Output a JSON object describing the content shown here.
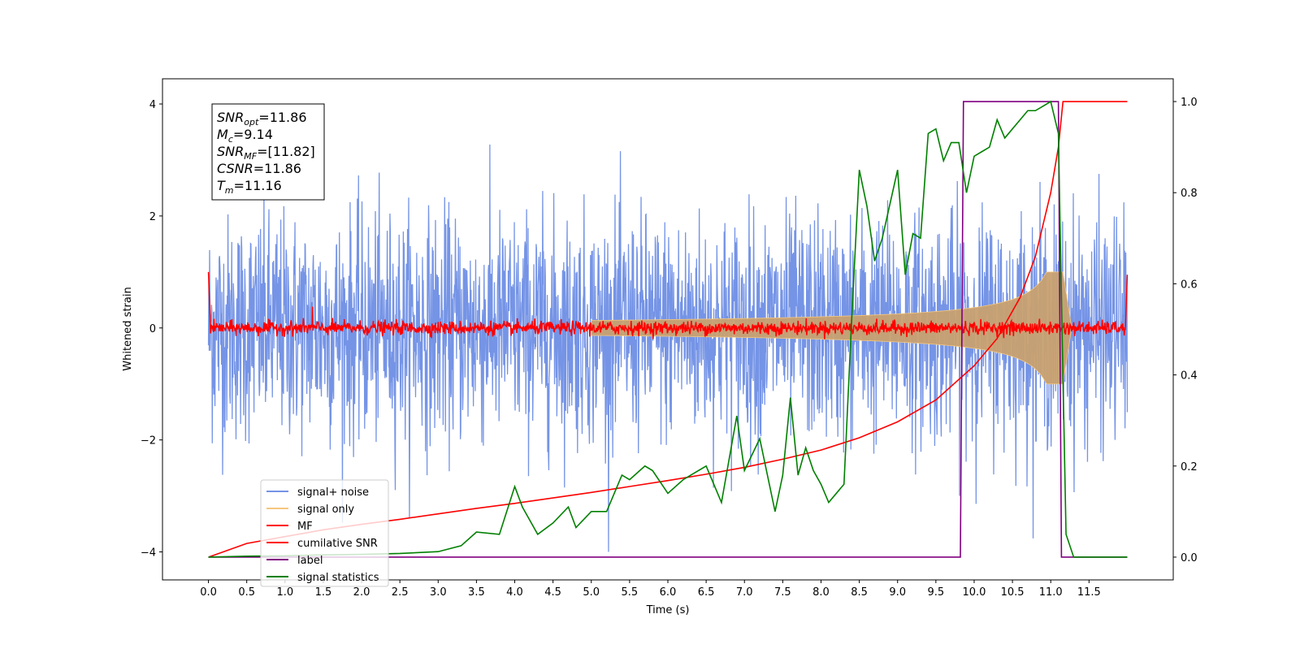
{
  "chart_data": {
    "type": "line",
    "xlabel": "Time (s)",
    "ylabel": "Whitened strain",
    "xlim": [
      -0.6,
      12.6
    ],
    "ylim": [
      -4.5,
      4.45
    ],
    "y2lim": [
      -0.05,
      1.05
    ],
    "x_ticks": [
      "0.0",
      "0.5",
      "1.0",
      "1.5",
      "2.0",
      "2.5",
      "3.0",
      "3.5",
      "4.0",
      "4.5",
      "5.0",
      "5.5",
      "6.0",
      "6.5",
      "7.0",
      "7.5",
      "8.0",
      "8.5",
      "9.0",
      "9.5",
      "10.0",
      "10.5",
      "11.0",
      "11.5"
    ],
    "y_ticks": [
      "4",
      "2",
      "0",
      "−2",
      "−4"
    ],
    "y2_ticks": [
      "1.0",
      "0.8",
      "0.6",
      "0.4",
      "0.2",
      "0.0"
    ],
    "grid": false,
    "legend_position": "lower-left",
    "info_box": {
      "lines": [
        {
          "sym": "SNR",
          "sub": "opt",
          "val": "=11.86"
        },
        {
          "sym": "M",
          "sub": "c",
          "val": "=9.14"
        },
        {
          "sym": "SNR",
          "sub": "MF",
          "val": "=[11.82]"
        },
        {
          "sym": "CSNR",
          "sub": "",
          "val": "=11.86"
        },
        {
          "sym": "T",
          "sub": "m",
          "val": "=11.16"
        }
      ]
    },
    "series": [
      {
        "name": "signal+ noise",
        "axis": "left",
        "color": "#7594e6",
        "style": "noise",
        "x_range": [
          0,
          12
        ],
        "amplitude_std": 1.0
      },
      {
        "name": "signal only",
        "axis": "left",
        "color": "#f5c77e",
        "style": "chirp",
        "merger_time": 11.16,
        "peak_amplitude": 1.0
      },
      {
        "name": "MF",
        "axis": "left",
        "color": "#ff0000",
        "style": "noise",
        "x_range": [
          0,
          12
        ],
        "amplitude_std": 0.06
      },
      {
        "name": "cumilative SNR",
        "axis": "right",
        "color": "#ff0000",
        "x": [
          0.0,
          0.5,
          1.0,
          1.5,
          2.0,
          2.5,
          3.0,
          3.5,
          4.0,
          4.5,
          5.0,
          5.5,
          6.0,
          6.5,
          7.0,
          7.5,
          8.0,
          8.5,
          9.0,
          9.5,
          10.0,
          10.3,
          10.6,
          10.8,
          11.0,
          11.1,
          11.16,
          12.0
        ],
        "y": [
          0.0,
          0.03,
          0.045,
          0.06,
          0.072,
          0.083,
          0.095,
          0.107,
          0.118,
          0.13,
          0.142,
          0.155,
          0.168,
          0.182,
          0.197,
          0.215,
          0.235,
          0.262,
          0.297,
          0.345,
          0.42,
          0.48,
          0.57,
          0.66,
          0.8,
          0.9,
          1.0,
          1.0
        ]
      },
      {
        "name": "label",
        "axis": "right",
        "color": "#800080",
        "x": [
          0.0,
          9.82,
          9.86,
          11.1,
          11.14,
          12.0
        ],
        "y": [
          0.0,
          0.0,
          1.0,
          1.0,
          0.0,
          0.0
        ]
      },
      {
        "name": "signal statistics",
        "axis": "right",
        "color": "#008000",
        "x": [
          0.0,
          0.5,
          1.0,
          1.5,
          2.0,
          2.5,
          3.0,
          3.3,
          3.5,
          3.8,
          4.0,
          4.1,
          4.3,
          4.5,
          4.7,
          4.8,
          5.0,
          5.2,
          5.4,
          5.5,
          5.7,
          5.8,
          6.0,
          6.2,
          6.3,
          6.5,
          6.7,
          6.9,
          7.0,
          7.2,
          7.4,
          7.5,
          7.6,
          7.7,
          7.8,
          7.9,
          8.0,
          8.1,
          8.2,
          8.3,
          8.4,
          8.5,
          8.6,
          8.7,
          8.8,
          9.0,
          9.1,
          9.2,
          9.3,
          9.4,
          9.5,
          9.6,
          9.7,
          9.8,
          9.9,
          10.0,
          10.1,
          10.2,
          10.3,
          10.4,
          10.5,
          10.6,
          10.7,
          10.8,
          10.9,
          11.0,
          11.1,
          11.15,
          11.2,
          11.3,
          12.0
        ],
        "y": [
          0.0,
          0.002,
          0.003,
          0.005,
          0.006,
          0.008,
          0.012,
          0.025,
          0.055,
          0.05,
          0.155,
          0.11,
          0.05,
          0.075,
          0.11,
          0.065,
          0.1,
          0.1,
          0.18,
          0.17,
          0.2,
          0.19,
          0.14,
          0.17,
          0.18,
          0.2,
          0.12,
          0.31,
          0.19,
          0.26,
          0.1,
          0.18,
          0.35,
          0.18,
          0.24,
          0.19,
          0.16,
          0.12,
          0.14,
          0.16,
          0.52,
          0.85,
          0.77,
          0.65,
          0.7,
          0.85,
          0.62,
          0.71,
          0.7,
          0.93,
          0.94,
          0.87,
          0.91,
          0.91,
          0.8,
          0.88,
          0.89,
          0.9,
          0.96,
          0.92,
          0.94,
          0.96,
          0.98,
          0.98,
          0.99,
          1.0,
          0.93,
          0.48,
          0.05,
          0.0,
          0.0
        ]
      }
    ]
  }
}
